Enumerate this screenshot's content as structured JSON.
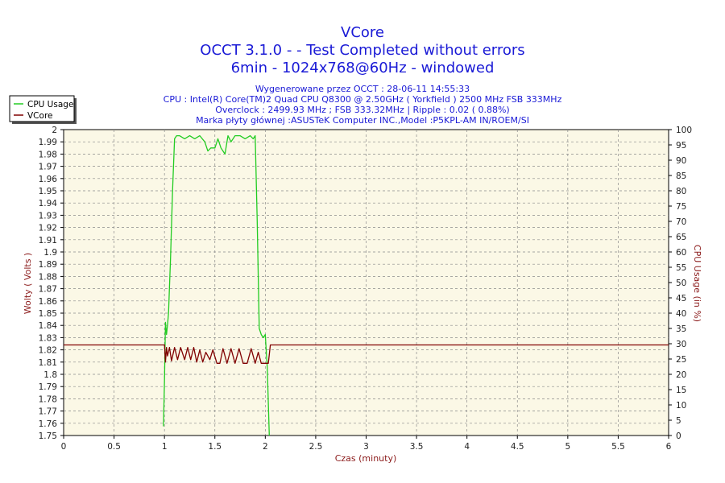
{
  "titles": {
    "line1": "VCore",
    "line2": "OCCT 3.1.0 -  - Test Completed without errors",
    "line3": "6min - 1024x768@60Hz - windowed"
  },
  "subtitles": {
    "line1": "Wygenerowane przez OCCT : 28-06-11 14:55:33",
    "line2": "CPU : Intel(R) Core(TM)2 Quad CPU Q8300 @ 2.50GHz ( Yorkfield ) 2500 MHz FSB 333MHz",
    "line3": "Overclock : 2499.93 MHz ; FSB 333.32MHz | Ripple : 0.02 ( 0.88%)",
    "line4": "Marka płyty głównej :ASUSTeK Computer INC.,Model :P5KPL-AM IN/ROEM/SI"
  },
  "colors": {
    "plot_bg": "#fbf8e6",
    "grid": "#8a8a8a",
    "cpu_usage": "#22cc22",
    "vcore": "#800000",
    "title": "#1a1ad6",
    "axis_label": "#8b1a1a"
  },
  "chart_data": {
    "type": "line",
    "title": "VCore",
    "xlabel": "Czas (minuty)",
    "ylabel": "Wolty ( Volts )",
    "y2label": "CPU Usage (in %)",
    "xlim": [
      0,
      6
    ],
    "ylim": [
      1.75,
      2.0
    ],
    "y2lim": [
      0,
      100
    ],
    "grid": true,
    "legend_position": "top-left",
    "x_ticks": [
      "0",
      "0.5",
      "1",
      "1.5",
      "2",
      "2.5",
      "3",
      "3.5",
      "4",
      "4.5",
      "5",
      "5.5",
      "6"
    ],
    "y_ticks": [
      "1.75",
      "1.76",
      "1.77",
      "1.78",
      "1.79",
      "1.8",
      "1.81",
      "1.82",
      "1.83",
      "1.84",
      "1.85",
      "1.86",
      "1.87",
      "1.88",
      "1.89",
      "1.9",
      "1.91",
      "1.92",
      "1.93",
      "1.94",
      "1.95",
      "1.96",
      "1.97",
      "1.98",
      "1.99",
      "2"
    ],
    "y2_ticks": [
      "0",
      "5",
      "10",
      "15",
      "20",
      "25",
      "30",
      "35",
      "40",
      "45",
      "50",
      "55",
      "60",
      "65",
      "70",
      "75",
      "80",
      "85",
      "90",
      "95",
      "100"
    ],
    "series": [
      {
        "name": "CPU Usage",
        "axis": "right",
        "x": [
          0.99,
          1.0,
          1.01,
          1.02,
          1.03,
          1.04,
          1.06,
          1.08,
          1.1,
          1.12,
          1.15,
          1.2,
          1.25,
          1.3,
          1.35,
          1.4,
          1.43,
          1.46,
          1.5,
          1.53,
          1.56,
          1.6,
          1.63,
          1.66,
          1.7,
          1.75,
          1.8,
          1.85,
          1.88,
          1.9,
          1.92,
          1.94,
          1.96,
          1.98,
          2.0,
          2.02,
          2.04
        ],
        "y": [
          3,
          18,
          37,
          33,
          36,
          40,
          58,
          80,
          97,
          98,
          98,
          97,
          98,
          97,
          98,
          96,
          93,
          94,
          94,
          97,
          94,
          92,
          98,
          96,
          98,
          98,
          97,
          98,
          97,
          98,
          70,
          35,
          33,
          32,
          33,
          22,
          0
        ]
      },
      {
        "name": "VCore",
        "axis": "left",
        "x": [
          0,
          0.99,
          1.0,
          1.01,
          1.02,
          1.03,
          1.05,
          1.07,
          1.1,
          1.13,
          1.16,
          1.2,
          1.23,
          1.26,
          1.29,
          1.32,
          1.35,
          1.38,
          1.41,
          1.45,
          1.48,
          1.52,
          1.55,
          1.58,
          1.62,
          1.66,
          1.7,
          1.74,
          1.78,
          1.82,
          1.86,
          1.9,
          1.93,
          1.96,
          2.0,
          2.03,
          2.05,
          2.08,
          6
        ],
        "y": [
          1.824,
          1.824,
          1.824,
          1.81,
          1.822,
          1.815,
          1.822,
          1.811,
          1.822,
          1.812,
          1.822,
          1.812,
          1.822,
          1.812,
          1.822,
          1.81,
          1.82,
          1.81,
          1.818,
          1.812,
          1.82,
          1.809,
          1.809,
          1.821,
          1.809,
          1.821,
          1.809,
          1.821,
          1.809,
          1.809,
          1.821,
          1.809,
          1.818,
          1.809,
          1.809,
          1.809,
          1.824,
          1.824,
          1.824
        ]
      }
    ]
  }
}
